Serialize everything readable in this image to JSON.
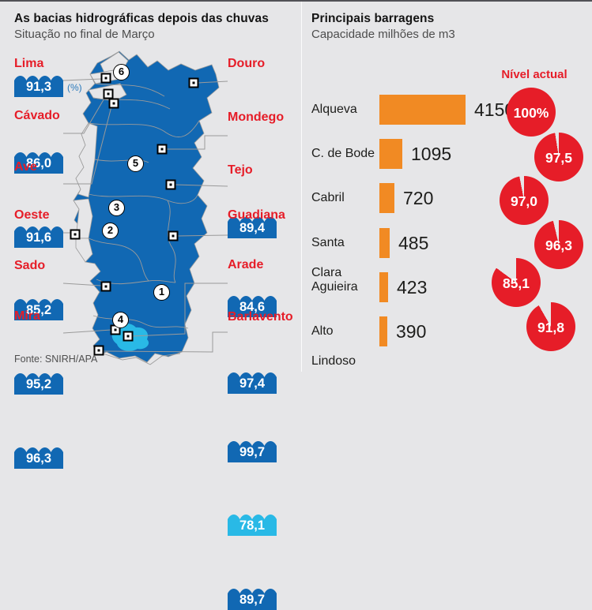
{
  "left_panel": {
    "title": "As bacias hidrográficas depois das chuvas",
    "subtitle": "Situação no final de Março",
    "unit_note": "(%)",
    "source": "Fonte: SNIRH/APA",
    "basins_left": [
      {
        "name": "Lima",
        "value": "91,3",
        "color": "#1168b3"
      },
      {
        "name": "Cávado",
        "value": "86,0",
        "color": "#1168b3"
      },
      {
        "name": "Ave",
        "value": "91,6",
        "color": "#1168b3"
      },
      {
        "name": "Oeste",
        "value": "85,2",
        "color": "#1168b3"
      },
      {
        "name": "Sado",
        "value": "95,2",
        "color": "#1168b3"
      },
      {
        "name": "Mira",
        "value": "96,3",
        "color": "#1168b3"
      }
    ],
    "basins_right": [
      {
        "name": "Douro",
        "value": "89,4",
        "color": "#1168b3"
      },
      {
        "name": "Mondego",
        "value": "84,6",
        "color": "#1168b3"
      },
      {
        "name": "Tejo",
        "value": "97,4",
        "color": "#1168b3"
      },
      {
        "name": "Guadiana",
        "value": "99,7",
        "color": "#1168b3"
      },
      {
        "name": "Arade",
        "value": "78,1",
        "color": "#29b9e6"
      },
      {
        "name": "Barlavento",
        "value": "89,7",
        "color": "#1168b3"
      }
    ],
    "map_region_numbers": [
      "6",
      "5",
      "3",
      "2",
      "1",
      "4"
    ]
  },
  "right_panel": {
    "title": "Principais barragens",
    "subtitle": "Capacidade milhões de m3",
    "level_header": "Nível actual",
    "accent_bar_color": "#f18a23",
    "accent_pie_color": "#e61d28",
    "dams": [
      {
        "name": "Alqueva",
        "capacity": 4150,
        "capacity_label": "4150",
        "level_pct": 100,
        "level_label": "100%"
      },
      {
        "name": "C. de Bode",
        "capacity": 1095,
        "capacity_label": "1095",
        "level_pct": 97.5,
        "level_label": "97,5"
      },
      {
        "name": "Cabril",
        "capacity": 720,
        "capacity_label": "720",
        "level_pct": 97.0,
        "level_label": "97,0"
      },
      {
        "name": "Santa Clara",
        "capacity": 485,
        "capacity_label": "485",
        "level_pct": 96.3,
        "level_label": "96,3"
      },
      {
        "name": "Aguieira",
        "capacity": 423,
        "capacity_label": "423",
        "level_pct": 85.1,
        "level_label": "85,1"
      },
      {
        "name": "Alto Lindoso",
        "capacity": 390,
        "capacity_label": "390",
        "level_pct": 91.8,
        "level_label": "91,8"
      }
    ]
  },
  "chart_data": [
    {
      "type": "bar",
      "orientation": "horizontal",
      "title": "Principais barragens",
      "subtitle": "Capacidade milhões de m3",
      "categories": [
        "Alqueva",
        "C. de Bode",
        "Cabril",
        "Santa Clara",
        "Aguieira",
        "Alto Lindoso"
      ],
      "series": [
        {
          "name": "Capacidade (milhões de m3)",
          "values": [
            4150,
            1095,
            720,
            485,
            423,
            390
          ]
        },
        {
          "name": "Nível actual (%)",
          "values": [
            100,
            97.5,
            97.0,
            96.3,
            85.1,
            91.8
          ]
        }
      ],
      "xlim": [
        0,
        4150
      ],
      "grid": false,
      "legend_position": "none"
    },
    {
      "type": "table",
      "title": "As bacias hidrográficas depois das chuvas",
      "subtitle": "Situação no final de Março",
      "unit": "%",
      "categories": [
        "Lima",
        "Cávado",
        "Ave",
        "Oeste",
        "Sado",
        "Mira",
        "Douro",
        "Mondego",
        "Tejo",
        "Guadiana",
        "Arade",
        "Barlavento"
      ],
      "values": [
        91.3,
        86.0,
        91.6,
        85.2,
        95.2,
        96.3,
        89.4,
        84.6,
        97.4,
        99.7,
        78.1,
        89.7
      ]
    }
  ]
}
